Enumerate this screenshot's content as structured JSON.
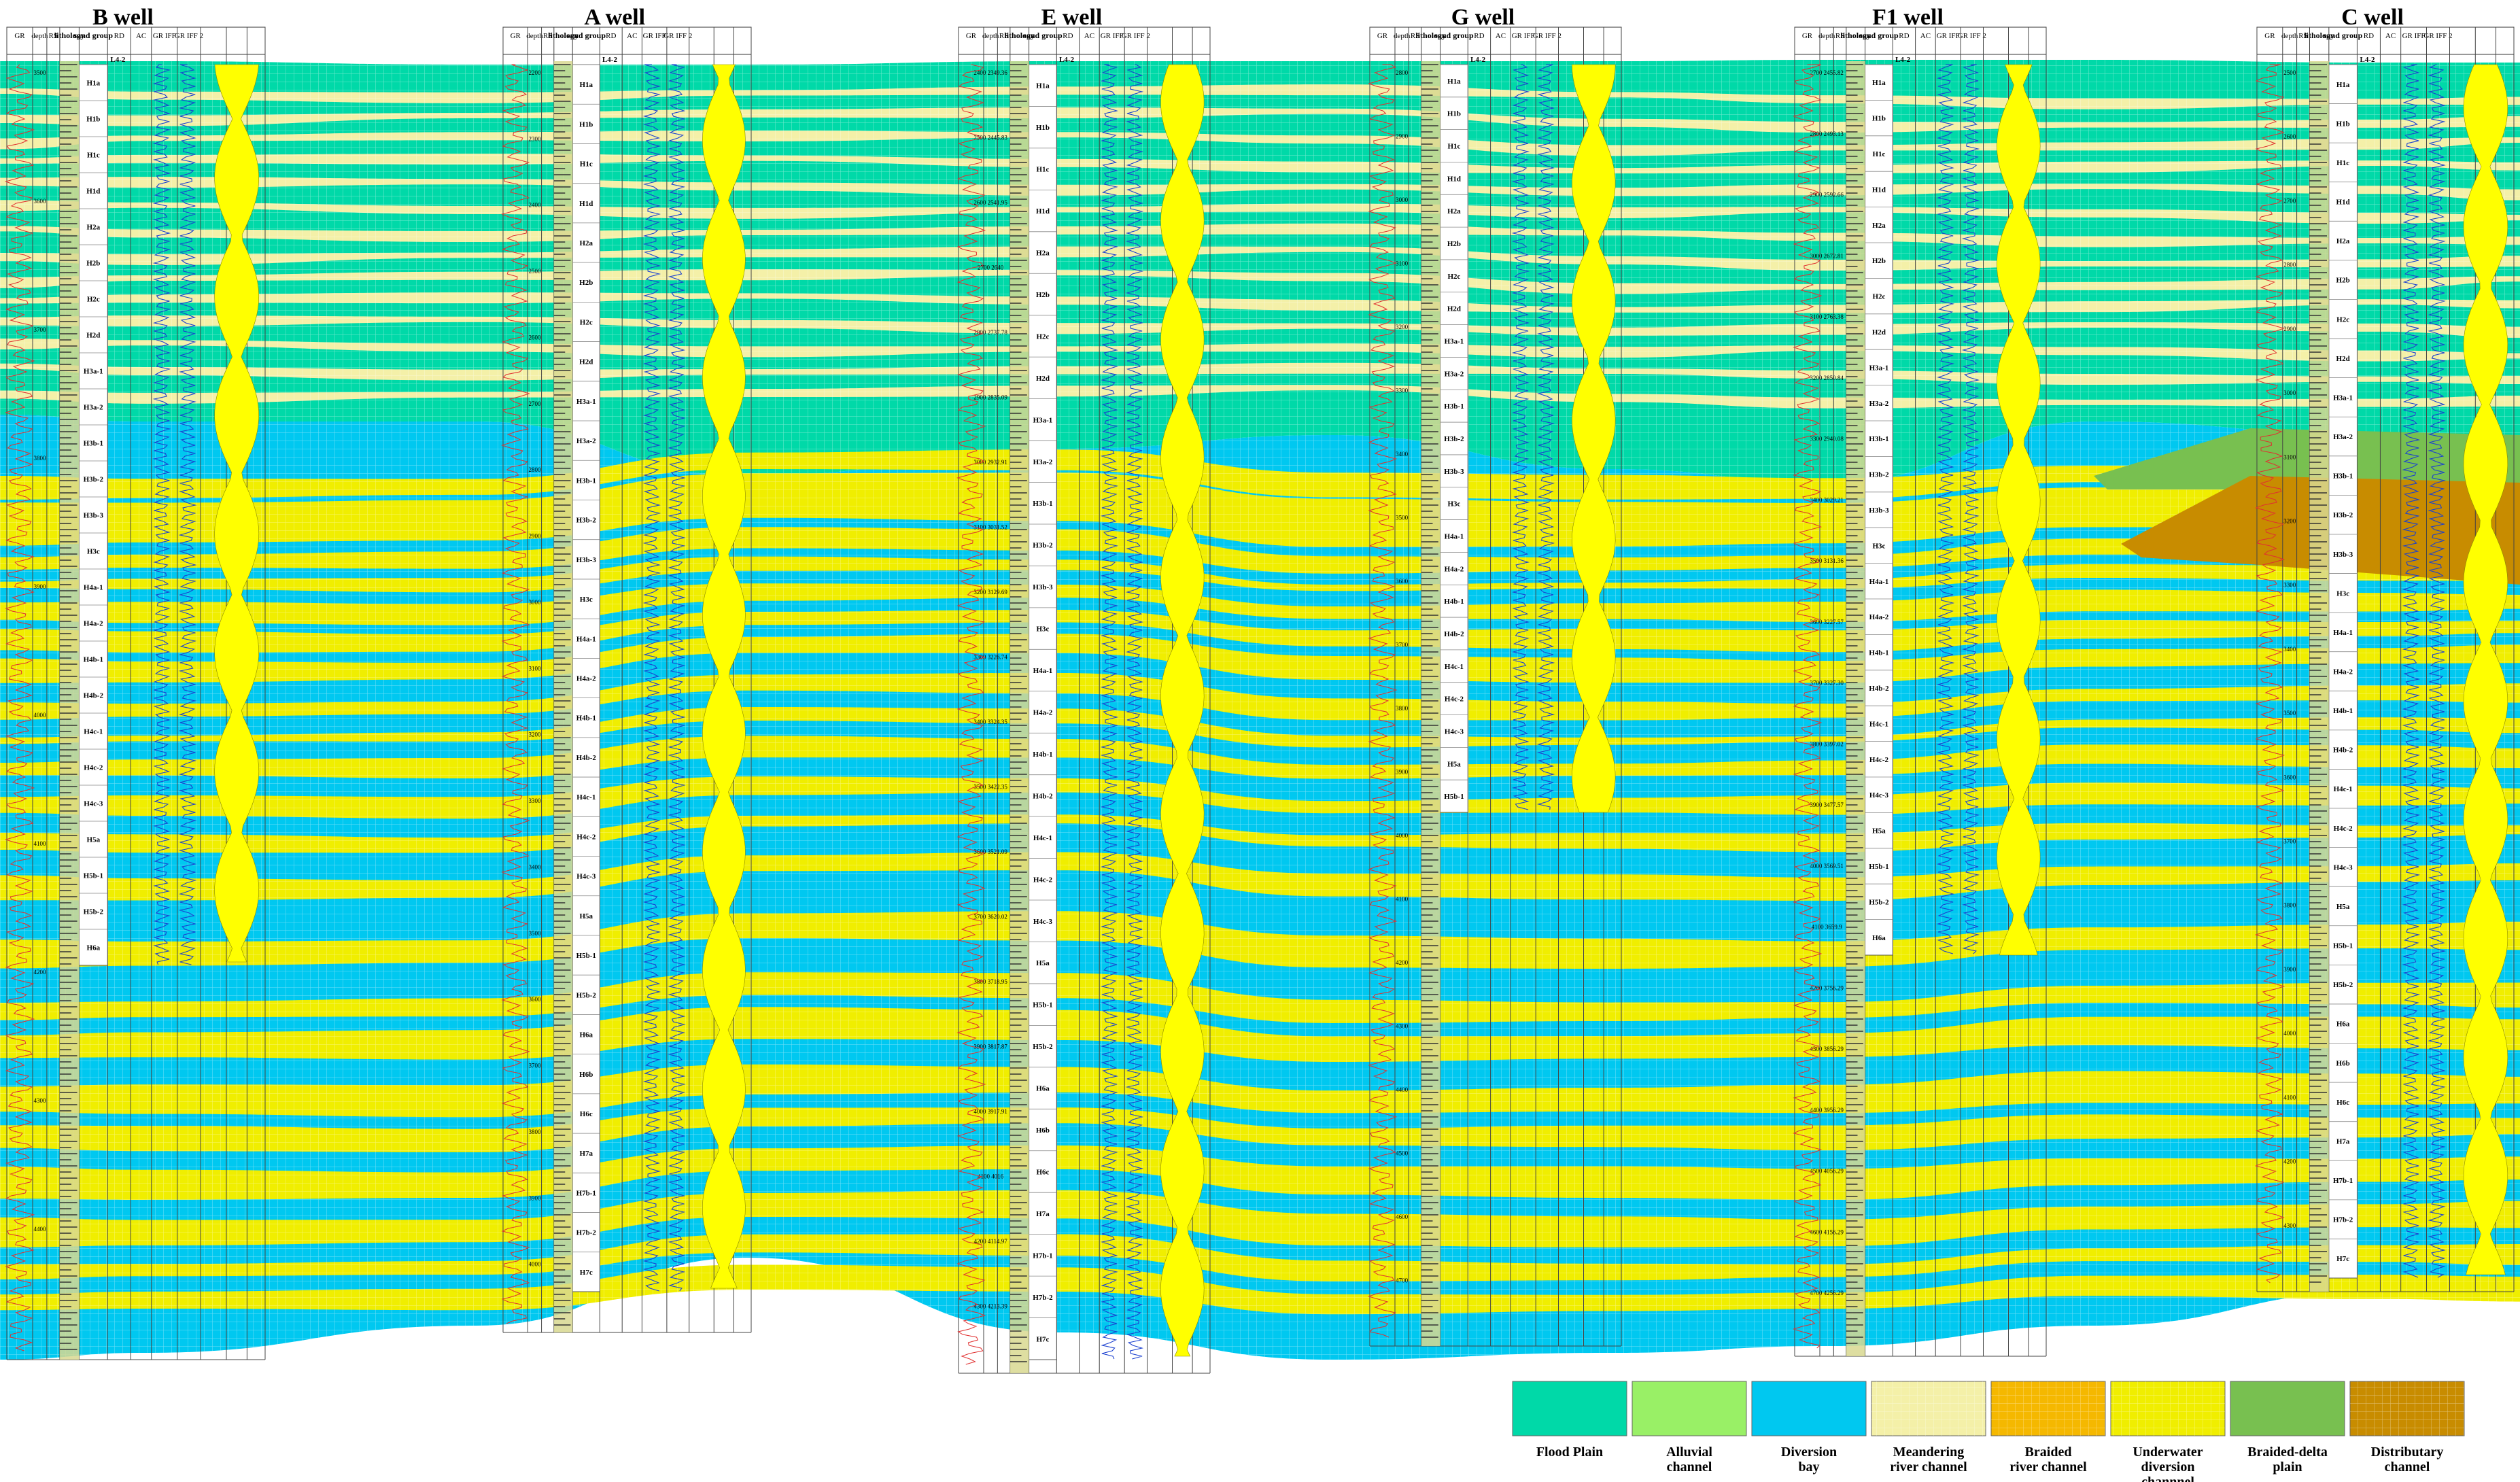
{
  "figure_title": "Well-tie sedimentary microfacies correlation section",
  "colors": {
    "flood_plain": "#00d9a8",
    "alluvial": "#99f066",
    "diversion_bay": "#00c8f0",
    "meandering": "#f4f0a8",
    "braided": "#f5b800",
    "underwater": "#f0ee00",
    "braided_delta": "#78c050",
    "distributary": "#c88c00",
    "gr_fill": "#ffff00"
  },
  "header_labels": {
    "gr": "GR",
    "depth": "depth",
    "rs": "RS",
    "rd": "RD",
    "ac": "AC",
    "lithology": "lithology",
    "sand_group": "sand group",
    "grif": "GR IFF",
    "grif2": "GR IFF 2"
  },
  "wells": [
    {
      "name": "B well",
      "top_zone": "L4-2",
      "depths": [
        "3500",
        "3600",
        "3700",
        "3800",
        "3900",
        "4000",
        "4100",
        "4200",
        "4300",
        "4400"
      ],
      "zones": [
        "H1a",
        "H1b",
        "H1c",
        "H1d",
        "H2a",
        "H2b",
        "H2c",
        "H2d",
        "H3a-1",
        "H3a-2",
        "H3b-1",
        "H3b-2",
        "H3b-3",
        "H3c",
        "H4a-1",
        "H4a-2",
        "H4b-1",
        "H4b-2",
        "H4c-1",
        "H4c-2",
        "H4c-3",
        "H5a",
        "H5b-1",
        "H5b-2",
        "H6a"
      ]
    },
    {
      "name": "A well",
      "top_zone": "L4-2",
      "depths": [
        "2200",
        "2300",
        "2400",
        "2500",
        "2600",
        "2700",
        "2800",
        "2900",
        "3000",
        "3100",
        "3200",
        "3300",
        "3400",
        "3500",
        "3600",
        "3700",
        "3800",
        "3900",
        "4000"
      ],
      "zones": [
        "H1a",
        "H1b",
        "H1c",
        "H1d",
        "H2a",
        "H2b",
        "H2c",
        "H2d",
        "H3a-1",
        "H3a-2",
        "H3b-1",
        "H3b-2",
        "H3b-3",
        "H3c",
        "H4a-1",
        "H4a-2",
        "H4b-1",
        "H4b-2",
        "H4c-1",
        "H4c-2",
        "H4c-3",
        "H5a",
        "H5b-1",
        "H5b-2",
        "H6a",
        "H6b",
        "H6c",
        "H7a",
        "H7b-1",
        "H7b-2",
        "H7c"
      ]
    },
    {
      "name": "E well",
      "top_zone": "L4-2",
      "depths": [
        "2400 2349.36",
        "2500 2445.83",
        "2600 2541.95",
        "2700 2640",
        "2800 2737.78",
        "2900 2835.09",
        "3000 2932.91",
        "3100 3031.52",
        "3200 3129.69",
        "3300 3226.74",
        "3400 3324.35",
        "3500 3422.35",
        "3600 3521.09",
        "3700 3620.02",
        "3800 3718.95",
        "3900 3817.87",
        "4000 3917.91",
        "4100 4016",
        "4200 4114.97",
        "4300 4213.39"
      ],
      "zones": [
        "H1a",
        "H1b",
        "H1c",
        "H1d",
        "H2a",
        "H2b",
        "H2c",
        "H2d",
        "H3a-1",
        "H3a-2",
        "H3b-1",
        "H3b-2",
        "H3b-3",
        "H3c",
        "H4a-1",
        "H4a-2",
        "H4b-1",
        "H4b-2",
        "H4c-1",
        "H4c-2",
        "H4c-3",
        "H5a",
        "H5b-1",
        "H5b-2",
        "H6a",
        "H6b",
        "H6c",
        "H7a",
        "H7b-1",
        "H7b-2",
        "H7c"
      ]
    },
    {
      "name": "G well",
      "top_zone": "L4-2",
      "depths": [
        "2800",
        "2900",
        "3000",
        "3100",
        "3200",
        "3300",
        "3400",
        "3500",
        "3600",
        "3700",
        "3800",
        "3900",
        "4000",
        "4100",
        "4200",
        "4300",
        "4400",
        "4500",
        "4600",
        "4700"
      ],
      "zones": [
        "H1a",
        "H1b",
        "H1c",
        "H1d",
        "H2a",
        "H2b",
        "H2c",
        "H2d",
        "H3a-1",
        "H3a-2",
        "H3b-1",
        "H3b-2",
        "H3b-3",
        "H3c",
        "H4a-1",
        "H4a-2",
        "H4b-1",
        "H4b-2",
        "H4c-1",
        "H4c-2",
        "H4c-3",
        "H5a",
        "H5b-1"
      ]
    },
    {
      "name": "F1 well",
      "top_zone": "L4-2",
      "depths": [
        "2700 2455.82",
        "2800 2493.13",
        "2900 2592.66",
        "3000 2672.81",
        "3100 2763.38",
        "3200 2850.84",
        "3300 2940.08",
        "3400 3029.21",
        "3500 3131.36",
        "3600 3227.57",
        "3700 3327.30",
        "3800 3397.02",
        "3900 3477.57",
        "4000 3569.51",
        "4100 3659.9",
        "4200 3756.29",
        "4300 3856.29",
        "4400 3956.29",
        "4500 4056.29",
        "4600 4156.29",
        "4700 4256.29"
      ],
      "zones": [
        "H1a",
        "H1b",
        "H1c",
        "H1d",
        "H2a",
        "H2b",
        "H2c",
        "H2d",
        "H3a-1",
        "H3a-2",
        "H3b-1",
        "H3b-2",
        "H3b-3",
        "H3c",
        "H4a-1",
        "H4a-2",
        "H4b-1",
        "H4b-2",
        "H4c-1",
        "H4c-2",
        "H4c-3",
        "H5a",
        "H5b-1",
        "H5b-2",
        "H6a"
      ]
    },
    {
      "name": "C well",
      "top_zone": "L4-2",
      "depths": [
        "2500",
        "2600",
        "2700",
        "2800",
        "2900",
        "3000",
        "3100",
        "3200",
        "3300",
        "3400",
        "3500",
        "3600",
        "3700",
        "3800",
        "3900",
        "4000",
        "4100",
        "4200",
        "4300"
      ],
      "zones": [
        "H1a",
        "H1b",
        "H1c",
        "H1d",
        "H2a",
        "H2b",
        "H2c",
        "H2d",
        "H3a-1",
        "H3a-2",
        "H3b-1",
        "H3b-2",
        "H3b-3",
        "H3c",
        "H4a-1",
        "H4a-2",
        "H4b-1",
        "H4b-2",
        "H4c-1",
        "H4c-2",
        "H4c-3",
        "H5a",
        "H5b-1",
        "H5b-2",
        "H6a",
        "H6b",
        "H6c",
        "H7a",
        "H7b-1",
        "H7b-2",
        "H7c"
      ]
    }
  ],
  "legend": [
    {
      "key": "flood_plain",
      "line1": "Flood Plain",
      "line2": ""
    },
    {
      "key": "alluvial",
      "line1": "Alluvial",
      "line2": "channel"
    },
    {
      "key": "diversion_bay",
      "line1": "Diversion",
      "line2": "bay"
    },
    {
      "key": "meandering",
      "line1": "Meandering",
      "line2": "river channel"
    },
    {
      "key": "braided",
      "line1": "Braided",
      "line2": "river channel"
    },
    {
      "key": "underwater",
      "line1": "Underwater",
      "line2": "diversion",
      "line3": "channnel"
    },
    {
      "key": "braided_delta",
      "line1": "Braided-delta",
      "line2": "plain"
    },
    {
      "key": "distributary",
      "line1": "Distributary",
      "line2": "channel"
    }
  ]
}
